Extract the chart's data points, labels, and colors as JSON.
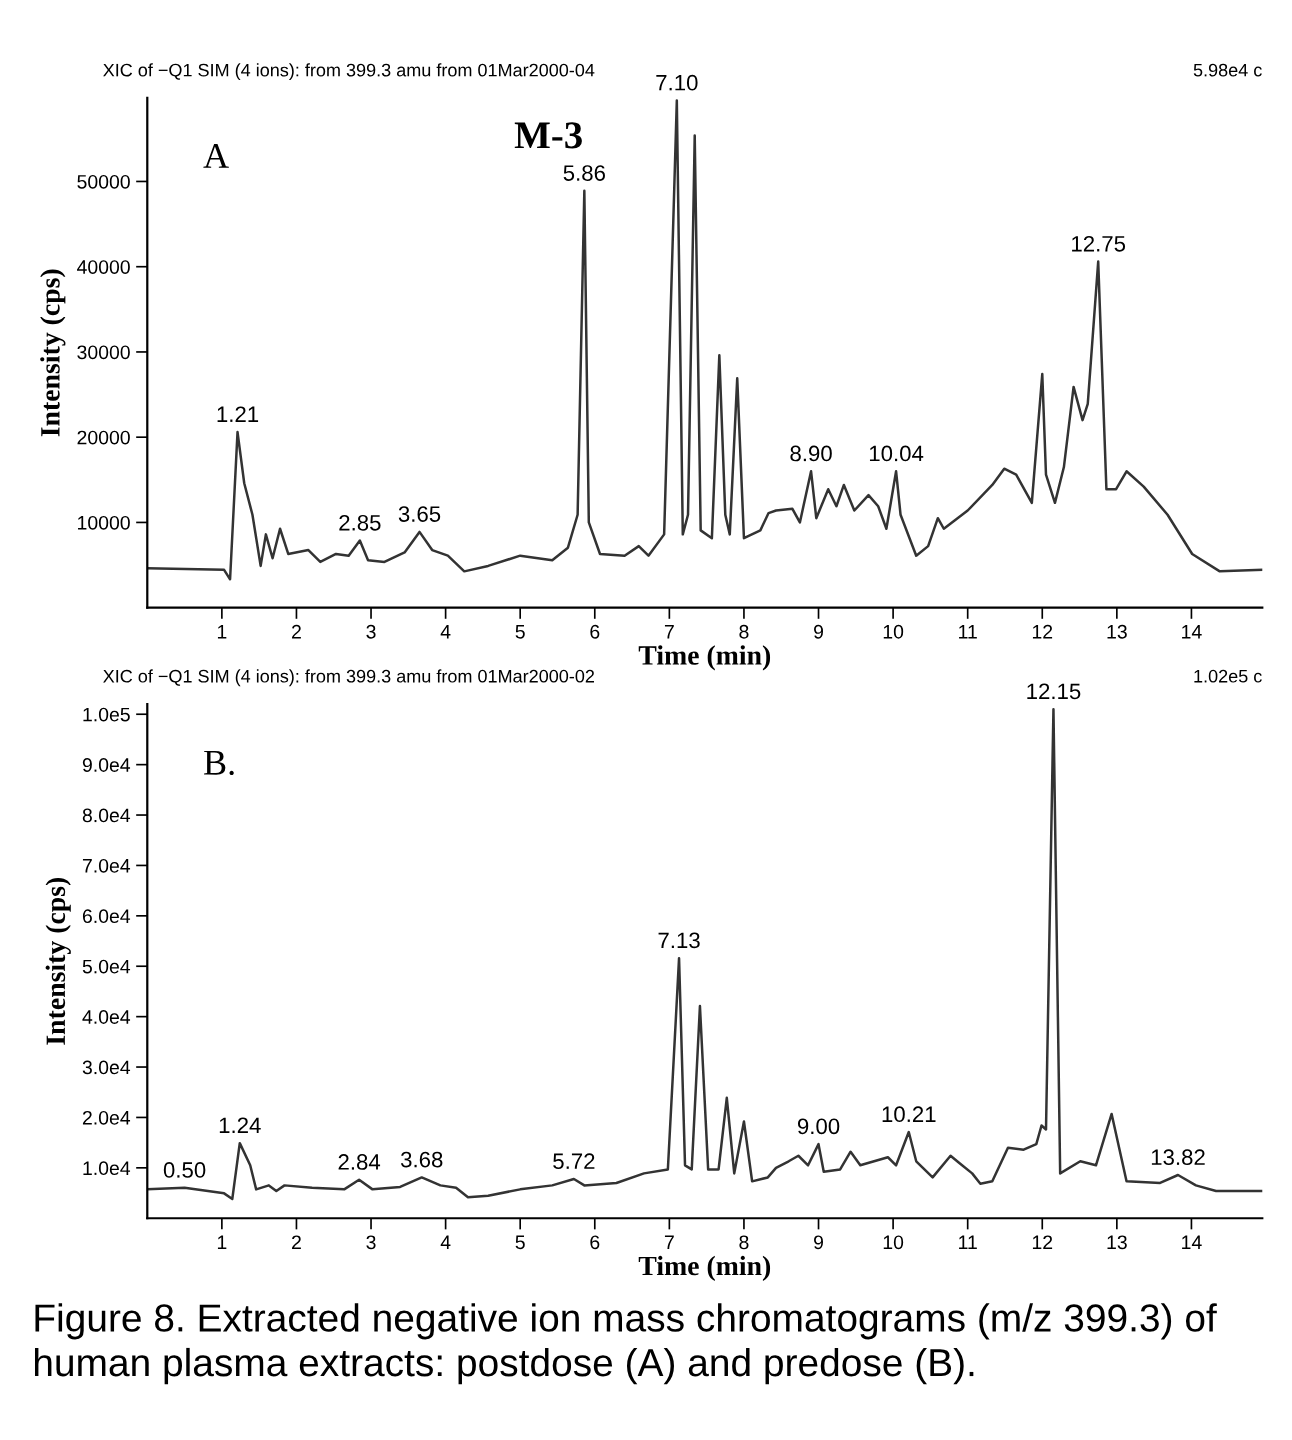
{
  "chart_data": [
    {
      "type": "line",
      "title": "XIC of −Q1 SIM (4 ions): from 399.3 amu from 01Mar2000-04",
      "xlabel": "Time (min)",
      "ylabel": "Intensity (cps)",
      "x": [
        0,
        1.03,
        1.11,
        1.21,
        1.3,
        1.41,
        1.52,
        1.59,
        1.68,
        1.78,
        1.89,
        2.16,
        2.32,
        2.53,
        2.7,
        2.85,
        2.96,
        3.18,
        3.45,
        3.65,
        3.82,
        4.03,
        4.25,
        4.57,
        5.0,
        5.43,
        5.64,
        5.77,
        5.86,
        5.92,
        6.07,
        6.4,
        6.59,
        6.72,
        6.93,
        7.1,
        7.18,
        7.25,
        7.34,
        7.42,
        7.57,
        7.67,
        7.75,
        7.81,
        7.91,
        8.0,
        8.22,
        8.33,
        8.43,
        8.65,
        8.75,
        8.9,
        8.97,
        9.13,
        9.24,
        9.34,
        9.48,
        9.67,
        9.8,
        9.91,
        10.04,
        10.1,
        10.31,
        10.47,
        10.6,
        10.68,
        11.0,
        11.33,
        11.49,
        11.65,
        11.86,
        12.0,
        12.05,
        12.17,
        12.29,
        12.42,
        12.54,
        12.61,
        12.75,
        12.86,
        12.99,
        13.13,
        13.36,
        13.68,
        14.01,
        14.38,
        14.95
      ],
      "series": [
        {
          "color": "#333333",
          "values": [
            4630,
            4440,
            3330,
            20600,
            14600,
            10900,
            4900,
            8600,
            5800,
            9260,
            6300,
            6760,
            5370,
            6300,
            6100,
            7870,
            5560,
            5370,
            6480,
            8890,
            6760,
            6100,
            4260,
            4900,
            6100,
            5560,
            7040,
            10900,
            48900,
            10000,
            6300,
            6100,
            7220,
            6100,
            8600,
            59500,
            8600,
            10900,
            55400,
            9070,
            8150,
            29600,
            10900,
            8600,
            26900,
            8150,
            9070,
            11100,
            11400,
            11600,
            10000,
            16000,
            10500,
            13900,
            11900,
            14400,
            11400,
            13200,
            11900,
            9260,
            16000,
            10900,
            6100,
            7220,
            10500,
            9260,
            11400,
            14400,
            16300,
            15600,
            12300,
            27400,
            15600,
            12300,
            16500,
            25900,
            22000,
            23900,
            40600,
            13900,
            13900,
            16000,
            14200,
            10900,
            6300,
            4260,
            4440
          ]
        }
      ],
      "xlim": [
        0,
        14.95
      ],
      "ylim": [
        0,
        59800
      ],
      "xticks": [
        1,
        2,
        3,
        4,
        5,
        6,
        7,
        8,
        9,
        10,
        11,
        12,
        13,
        14
      ],
      "yticks": [
        10000,
        20000,
        30000,
        40000,
        50000
      ],
      "grid": false,
      "annotations": [
        "A",
        "5.98e4 c",
        "M-3",
        {
          "text": "1.21",
          "x": 1.21,
          "y": 20600
        },
        {
          "text": "2.85",
          "x": 2.85,
          "y": 7870
        },
        {
          "text": "3.65",
          "x": 3.65,
          "y": 8890
        },
        {
          "text": "5.86",
          "x": 5.86,
          "y": 48900
        },
        {
          "text": "7.10",
          "x": 7.1,
          "y": 59500
        },
        {
          "text": "8.90",
          "x": 8.9,
          "y": 16000
        },
        {
          "text": "10.04",
          "x": 10.04,
          "y": 16000
        },
        {
          "text": "12.75",
          "x": 12.75,
          "y": 40600
        }
      ]
    },
    {
      "type": "line",
      "title": "XIC of −Q1 SIM (4 ions): from 399.3 amu from 01Mar2000-02",
      "xlabel": "Time (min)",
      "ylabel": "Intensity (cps)",
      "x": [
        0,
        0.5,
        1.03,
        1.14,
        1.24,
        1.38,
        1.46,
        1.63,
        1.73,
        1.84,
        2.21,
        2.64,
        2.84,
        3.02,
        3.39,
        3.68,
        3.93,
        4.14,
        4.3,
        4.57,
        5.0,
        5.43,
        5.72,
        5.86,
        6.29,
        6.66,
        6.98,
        7.13,
        7.21,
        7.3,
        7.41,
        7.52,
        7.66,
        7.77,
        7.87,
        8.0,
        8.11,
        8.32,
        8.43,
        8.6,
        8.73,
        8.86,
        9.0,
        9.07,
        9.29,
        9.43,
        9.56,
        9.93,
        10.04,
        10.21,
        10.31,
        10.53,
        10.77,
        10.9,
        11.06,
        11.17,
        11.33,
        11.54,
        11.75,
        11.92,
        11.99,
        12.05,
        12.15,
        12.24,
        12.51,
        12.72,
        12.93,
        13.13,
        13.58,
        13.82,
        14.06,
        14.33,
        14.95
      ],
      "series": [
        {
          "color": "#333333",
          "values": [
            5730,
            6050,
            4940,
            3830,
            14900,
            10500,
            5730,
            6520,
            5410,
            6520,
            6050,
            5730,
            7630,
            5730,
            6210,
            8100,
            6520,
            6050,
            4150,
            4470,
            5730,
            6520,
            7790,
            6520,
            7000,
            8900,
            9690,
            51600,
            10500,
            9690,
            42100,
            9690,
            9690,
            23900,
            8900,
            19200,
            7320,
            8100,
            10000,
            11300,
            12400,
            10500,
            14700,
            9210,
            9690,
            13200,
            10500,
            12100,
            10500,
            17100,
            11300,
            8100,
            12400,
            10800,
            8900,
            6840,
            7320,
            14000,
            13600,
            14700,
            18400,
            17600,
            101000,
            8900,
            11300,
            10500,
            20700,
            7320,
            7000,
            8580,
            6520,
            5410,
            5410
          ]
        }
      ],
      "xlim": [
        0,
        14.95
      ],
      "ylim": [
        0,
        102000
      ],
      "xticks": [
        1,
        2,
        3,
        4,
        5,
        6,
        7,
        8,
        9,
        10,
        11,
        12,
        13,
        14
      ],
      "yticks": [
        {
          "value": 10000,
          "label": "1.0e4"
        },
        {
          "value": 20000,
          "label": "2.0e4"
        },
        {
          "value": 30000,
          "label": "3.0e4"
        },
        {
          "value": 40000,
          "label": "4.0e4"
        },
        {
          "value": 50000,
          "label": "5.0e4"
        },
        {
          "value": 60000,
          "label": "6.0e4"
        },
        {
          "value": 70000,
          "label": "7.0e4"
        },
        {
          "value": 80000,
          "label": "8.0e4"
        },
        {
          "value": 90000,
          "label": "9.0e4"
        },
        {
          "value": 100000,
          "label": "1.0e5"
        }
      ],
      "grid": false,
      "annotations": [
        "B.",
        "1.02e5 c",
        "Figure 8. Extracted negative ion mass chromatograms (m/z 399.3) of human plasma extracts: postdose (A) and predose (B).",
        {
          "text": "0.50",
          "x": 0.5,
          "y": 6050
        },
        {
          "text": "1.24",
          "x": 1.24,
          "y": 14900
        },
        {
          "text": "2.84",
          "x": 2.84,
          "y": 7630
        },
        {
          "text": "3.68",
          "x": 3.68,
          "y": 8100
        },
        {
          "text": "5.72",
          "x": 5.72,
          "y": 7790
        },
        {
          "text": "7.13",
          "x": 7.13,
          "y": 51600
        },
        {
          "text": "9.00",
          "x": 9.0,
          "y": 14700
        },
        {
          "text": "10.21",
          "x": 10.21,
          "y": 17100
        },
        {
          "text": "12.15",
          "x": 12.15,
          "y": 101000
        },
        {
          "text": "13.82",
          "x": 13.82,
          "y": 8580
        }
      ]
    }
  ]
}
